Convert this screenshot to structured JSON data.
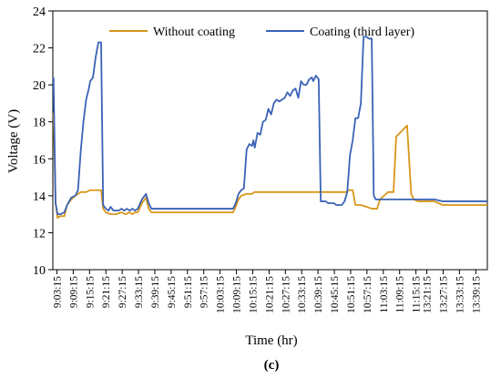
{
  "chart_data": {
    "type": "line",
    "caption": "(c)",
    "xlabel": "Time (hr)",
    "ylabel": "Voltage (V)",
    "ylim": [
      10,
      24
    ],
    "yticks": [
      10,
      12,
      14,
      16,
      18,
      20,
      22,
      24
    ],
    "xlim": [
      "9:01:45",
      "13:43:30"
    ],
    "xticks": [
      "9:03:15",
      "9:09:15",
      "9:15:15",
      "9:21:15",
      "9:27:15",
      "9:33:15",
      "9:39:15",
      "9:45:15",
      "9:51:15",
      "9:57:15",
      "10:03:15",
      "10:09:15",
      "10:15:15",
      "10:21:15",
      "10:27:15",
      "10:33:15",
      "10:39:15",
      "10:45:15",
      "10:51:15",
      "10:57:15",
      "11:03:15",
      "11:09:15",
      "11:15:15",
      "13:21:15",
      "13:27:15",
      "13:33:15",
      "13:39:15"
    ],
    "grid": false,
    "legend_position": "top",
    "series": [
      {
        "name": "Without coating",
        "color": "#D8961A",
        "points": [
          [
            "9:02:00",
            18.5
          ],
          [
            "9:02:45",
            13.6
          ],
          [
            "9:03:30",
            12.8
          ],
          [
            "9:04:30",
            12.9
          ],
          [
            "9:06:00",
            12.9
          ],
          [
            "9:07:00",
            13.5
          ],
          [
            "9:08:30",
            13.8
          ],
          [
            "9:10:00",
            14.0
          ],
          [
            "9:12:00",
            14.2
          ],
          [
            "9:14:00",
            14.2
          ],
          [
            "9:15:30",
            14.3
          ],
          [
            "9:18:00",
            14.3
          ],
          [
            "9:19:30",
            14.3
          ],
          [
            "9:20:15",
            13.3
          ],
          [
            "9:21:15",
            13.1
          ],
          [
            "9:23:00",
            13.0
          ],
          [
            "9:25:00",
            13.0
          ],
          [
            "9:27:00",
            13.1
          ],
          [
            "9:28:30",
            13.0
          ],
          [
            "9:30:00",
            13.1
          ],
          [
            "9:31:00",
            13.0
          ],
          [
            "9:32:00",
            13.1
          ],
          [
            "9:33:00",
            13.1
          ],
          [
            "9:34:30",
            13.6
          ],
          [
            "9:36:00",
            13.9
          ],
          [
            "9:37:00",
            13.3
          ],
          [
            "9:38:00",
            13.1
          ],
          [
            "10:08:00",
            13.1
          ],
          [
            "10:09:00",
            13.4
          ],
          [
            "10:10:00",
            13.8
          ],
          [
            "10:11:00",
            14.0
          ],
          [
            "10:13:00",
            14.1
          ],
          [
            "10:15:00",
            14.1
          ],
          [
            "10:16:00",
            14.2
          ],
          [
            "10:30:00",
            14.2
          ],
          [
            "10:45:00",
            14.2
          ],
          [
            "10:49:30",
            14.2
          ],
          [
            "10:50:30",
            14.3
          ],
          [
            "10:52:00",
            14.3
          ],
          [
            "10:53:00",
            13.5
          ],
          [
            "10:55:00",
            13.5
          ],
          [
            "10:57:00",
            13.4
          ],
          [
            "10:59:00",
            13.3
          ],
          [
            "11:01:00",
            13.3
          ],
          [
            "11:02:00",
            13.8
          ],
          [
            "11:03:30",
            14.0
          ],
          [
            "11:05:00",
            14.2
          ],
          [
            "11:07:00",
            14.2
          ],
          [
            "11:08:00",
            17.2
          ],
          [
            "11:10:00",
            17.5
          ],
          [
            "11:12:00",
            17.8
          ],
          [
            "11:13:30",
            14.1
          ],
          [
            "11:14:30",
            13.8
          ],
          [
            "11:16:00",
            13.7
          ],
          [
            "13:22:30",
            13.7
          ],
          [
            "13:24:00",
            13.7
          ],
          [
            "13:27:00",
            13.5
          ],
          [
            "13:33:00",
            13.5
          ],
          [
            "13:39:00",
            13.5
          ],
          [
            "13:43:30",
            13.5
          ]
        ]
      },
      {
        "name": "Coating (third layer)",
        "color": "#3A62B6",
        "points": [
          [
            "9:02:00",
            20.4
          ],
          [
            "9:02:45",
            13.6
          ],
          [
            "9:03:30",
            13.0
          ],
          [
            "9:04:30",
            13.0
          ],
          [
            "9:06:00",
            13.1
          ],
          [
            "9:07:00",
            13.5
          ],
          [
            "9:08:30",
            13.9
          ],
          [
            "9:10:00",
            14.0
          ],
          [
            "9:11:00",
            14.3
          ],
          [
            "9:12:00",
            16.4
          ],
          [
            "9:13:00",
            18.0
          ],
          [
            "9:14:00",
            19.2
          ],
          [
            "9:15:00",
            19.8
          ],
          [
            "9:15:30",
            20.2
          ],
          [
            "9:16:30",
            20.4
          ],
          [
            "9:17:30",
            21.5
          ],
          [
            "9:18:30",
            22.3
          ],
          [
            "9:19:30",
            22.3
          ],
          [
            "9:20:15",
            13.5
          ],
          [
            "9:21:15",
            13.3
          ],
          [
            "9:22:15",
            13.2
          ],
          [
            "9:23:00",
            13.4
          ],
          [
            "9:24:00",
            13.2
          ],
          [
            "9:26:00",
            13.2
          ],
          [
            "9:27:00",
            13.3
          ],
          [
            "9:28:00",
            13.2
          ],
          [
            "9:29:00",
            13.3
          ],
          [
            "9:30:00",
            13.2
          ],
          [
            "9:31:00",
            13.3
          ],
          [
            "9:32:00",
            13.2
          ],
          [
            "9:33:00",
            13.3
          ],
          [
            "9:34:30",
            13.8
          ],
          [
            "9:36:00",
            14.1
          ],
          [
            "9:37:00",
            13.6
          ],
          [
            "9:38:00",
            13.3
          ],
          [
            "10:08:00",
            13.3
          ],
          [
            "10:09:00",
            13.6
          ],
          [
            "10:10:00",
            14.1
          ],
          [
            "10:11:00",
            14.3
          ],
          [
            "10:12:00",
            14.4
          ],
          [
            "10:13:00",
            16.5
          ],
          [
            "10:14:00",
            16.8
          ],
          [
            "10:15:00",
            16.7
          ],
          [
            "10:15:30",
            17.0
          ],
          [
            "10:16:00",
            16.6
          ],
          [
            "10:17:00",
            17.4
          ],
          [
            "10:18:00",
            17.3
          ],
          [
            "10:19:00",
            18.0
          ],
          [
            "10:20:00",
            18.1
          ],
          [
            "10:21:00",
            18.7
          ],
          [
            "10:22:00",
            18.4
          ],
          [
            "10:23:00",
            19.0
          ],
          [
            "10:24:00",
            19.2
          ],
          [
            "10:25:00",
            19.1
          ],
          [
            "10:26:00",
            19.2
          ],
          [
            "10:27:00",
            19.3
          ],
          [
            "10:28:00",
            19.6
          ],
          [
            "10:29:00",
            19.4
          ],
          [
            "10:30:00",
            19.7
          ],
          [
            "10:31:00",
            19.8
          ],
          [
            "10:32:00",
            19.3
          ],
          [
            "10:33:00",
            20.2
          ],
          [
            "10:34:00",
            20.0
          ],
          [
            "10:35:00",
            20.0
          ],
          [
            "10:36:00",
            20.3
          ],
          [
            "10:37:00",
            20.4
          ],
          [
            "10:37:30",
            20.2
          ],
          [
            "10:38:30",
            20.5
          ],
          [
            "10:39:30",
            20.3
          ],
          [
            "10:40:15",
            13.7
          ],
          [
            "10:42:00",
            13.7
          ],
          [
            "10:43:00",
            13.6
          ],
          [
            "10:45:00",
            13.6
          ],
          [
            "10:46:00",
            13.5
          ],
          [
            "10:48:00",
            13.5
          ],
          [
            "10:49:00",
            13.7
          ],
          [
            "10:50:00",
            14.2
          ],
          [
            "10:51:00",
            16.2
          ],
          [
            "10:52:00",
            17.0
          ],
          [
            "10:53:00",
            18.2
          ],
          [
            "10:54:00",
            18.2
          ],
          [
            "10:55:00",
            19.0
          ],
          [
            "10:56:00",
            22.6
          ],
          [
            "10:57:00",
            22.6
          ],
          [
            "10:58:00",
            22.5
          ],
          [
            "10:59:00",
            22.5
          ],
          [
            "10:59:45",
            14.0
          ],
          [
            "11:00:30",
            13.8
          ],
          [
            "11:02:00",
            13.8
          ],
          [
            "13:22:30",
            13.8
          ],
          [
            "13:24:00",
            13.8
          ],
          [
            "13:27:00",
            13.7
          ],
          [
            "13:33:00",
            13.7
          ],
          [
            "13:39:00",
            13.7
          ],
          [
            "13:43:30",
            13.7
          ]
        ]
      }
    ]
  }
}
